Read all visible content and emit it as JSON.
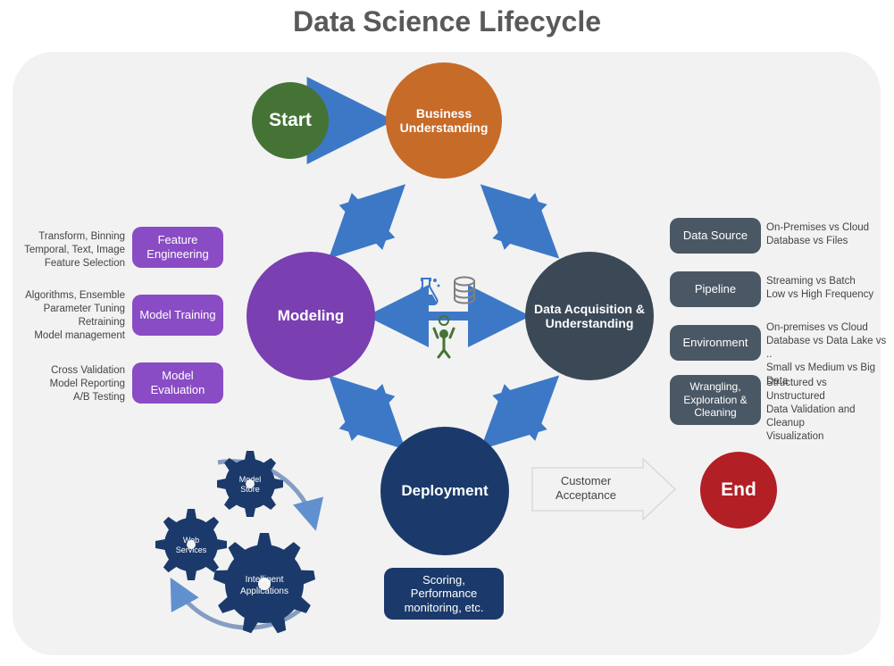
{
  "title": "Data Science Lifecycle",
  "bg": "#f2f2f2",
  "arrow_color": "#3d78c7",
  "customer_arrow_fill": "#f2f2f2",
  "customer_arrow_stroke": "#d9d9d9",
  "circles": {
    "start": {
      "label": "Start",
      "fill": "#457336",
      "size": 86,
      "font": 21
    },
    "business": {
      "label": "Business Understanding",
      "fill": "#c76b29",
      "size": 130,
      "font": 14
    },
    "modeling": {
      "label": "Modeling",
      "fill": "#7a3fb0",
      "size": 144,
      "font": 17
    },
    "data": {
      "label": "Data Acquisition & Understanding",
      "fill": "#3b4856",
      "size": 144,
      "font": 14
    },
    "deploy": {
      "label": "Deployment",
      "fill": "#1b3a6b",
      "size": 144,
      "font": 17
    },
    "end": {
      "label": "End",
      "fill": "#b21f24",
      "size": 86,
      "font": 21
    }
  },
  "modeling_boxes": [
    {
      "title": "Feature Engineering",
      "desc": "Transform, Binning\nTemporal, Text, Image\nFeature Selection"
    },
    {
      "title": "Model Training",
      "desc": "Algorithms, Ensemble\nParameter Tuning\nRetraining\nModel management"
    },
    {
      "title": "Model Evaluation",
      "desc": "Cross Validation\nModel Reporting\nA/B Testing"
    }
  ],
  "modeling_box_fill": "#8a4cc4",
  "data_boxes": [
    {
      "title": "Data Source",
      "desc": "On-Premises vs Cloud\nDatabase vs Files"
    },
    {
      "title": "Pipeline",
      "desc": "Streaming vs Batch\nLow vs High Frequency"
    },
    {
      "title": "Environment",
      "desc": "On-premises vs Cloud\nDatabase vs Data Lake  vs ..\nSmall vs Medium vs Big Data"
    },
    {
      "title": "Wrangling, Exploration & Cleaning",
      "desc": "Structured vs Unstructured\nData Validation and Cleanup\nVisualization"
    }
  ],
  "data_box_fill": "#4a5764",
  "deploy_box": {
    "label": "Scoring, Performance monitoring, etc.",
    "fill": "#1b3a6b"
  },
  "customer_label": "Customer Acceptance",
  "gears": {
    "fill": "#1b3a6b",
    "items": [
      {
        "label": "Model Store"
      },
      {
        "label": "Web Services"
      },
      {
        "label": "Intelligent Applications"
      }
    ],
    "arc_color": "#6a88b8"
  },
  "center_icons": {
    "flask": "#3d78c7",
    "db": "#808080",
    "figure": "#457336"
  }
}
